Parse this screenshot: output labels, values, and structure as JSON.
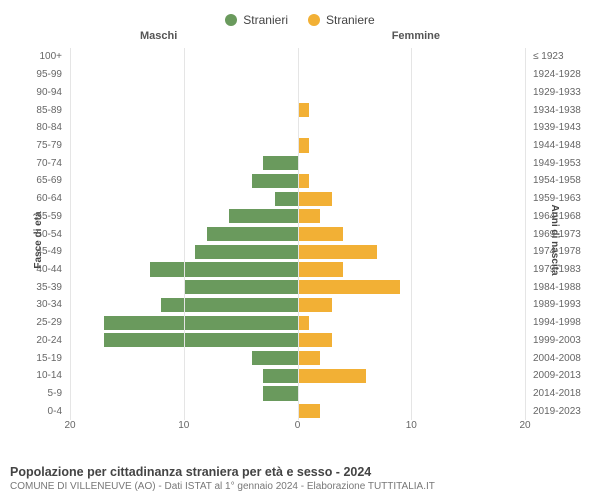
{
  "legend": {
    "male_label": "Stranieri",
    "female_label": "Straniere"
  },
  "columns": {
    "male_title": "Maschi",
    "female_title": "Femmine"
  },
  "axes": {
    "left_label": "Fasce di età",
    "right_label": "Anni di nascita"
  },
  "footer": {
    "title": "Popolazione per cittadinanza straniera per età e sesso - 2024",
    "subtitle": "COMUNE DI VILLENEUVE (AO) - Dati ISTAT al 1° gennaio 2024 - Elaborazione TUTTITALIA.IT"
  },
  "chart": {
    "type": "population-pyramid",
    "xmax": 20,
    "xtick_step": 10,
    "xticks": [
      "20",
      "10",
      "0",
      "10",
      "20"
    ],
    "grid_color": "#e5e5e5",
    "center_line_color": "#888888",
    "background_color": "#ffffff",
    "male_color": "#6a9a5d",
    "female_color": "#f2b035",
    "label_fontsize": 10,
    "title_fontsize": 11,
    "rows": [
      {
        "age": "100+",
        "birth": "≤ 1923",
        "m": 0,
        "f": 0
      },
      {
        "age": "95-99",
        "birth": "1924-1928",
        "m": 0,
        "f": 0
      },
      {
        "age": "90-94",
        "birth": "1929-1933",
        "m": 0,
        "f": 0
      },
      {
        "age": "85-89",
        "birth": "1934-1938",
        "m": 0,
        "f": 1
      },
      {
        "age": "80-84",
        "birth": "1939-1943",
        "m": 0,
        "f": 0
      },
      {
        "age": "75-79",
        "birth": "1944-1948",
        "m": 0,
        "f": 1
      },
      {
        "age": "70-74",
        "birth": "1949-1953",
        "m": 3,
        "f": 0
      },
      {
        "age": "65-69",
        "birth": "1954-1958",
        "m": 4,
        "f": 1
      },
      {
        "age": "60-64",
        "birth": "1959-1963",
        "m": 2,
        "f": 3
      },
      {
        "age": "55-59",
        "birth": "1964-1968",
        "m": 6,
        "f": 2
      },
      {
        "age": "50-54",
        "birth": "1969-1973",
        "m": 8,
        "f": 4
      },
      {
        "age": "45-49",
        "birth": "1974-1978",
        "m": 9,
        "f": 7
      },
      {
        "age": "40-44",
        "birth": "1979-1983",
        "m": 13,
        "f": 4
      },
      {
        "age": "35-39",
        "birth": "1984-1988",
        "m": 10,
        "f": 9
      },
      {
        "age": "30-34",
        "birth": "1989-1993",
        "m": 12,
        "f": 3
      },
      {
        "age": "25-29",
        "birth": "1994-1998",
        "m": 17,
        "f": 1
      },
      {
        "age": "20-24",
        "birth": "1999-2003",
        "m": 17,
        "f": 3
      },
      {
        "age": "15-19",
        "birth": "2004-2008",
        "m": 4,
        "f": 2
      },
      {
        "age": "10-14",
        "birth": "2009-2013",
        "m": 3,
        "f": 6
      },
      {
        "age": "5-9",
        "birth": "2014-2018",
        "m": 3,
        "f": 0
      },
      {
        "age": "0-4",
        "birth": "2019-2023",
        "m": 0,
        "f": 2
      }
    ]
  }
}
